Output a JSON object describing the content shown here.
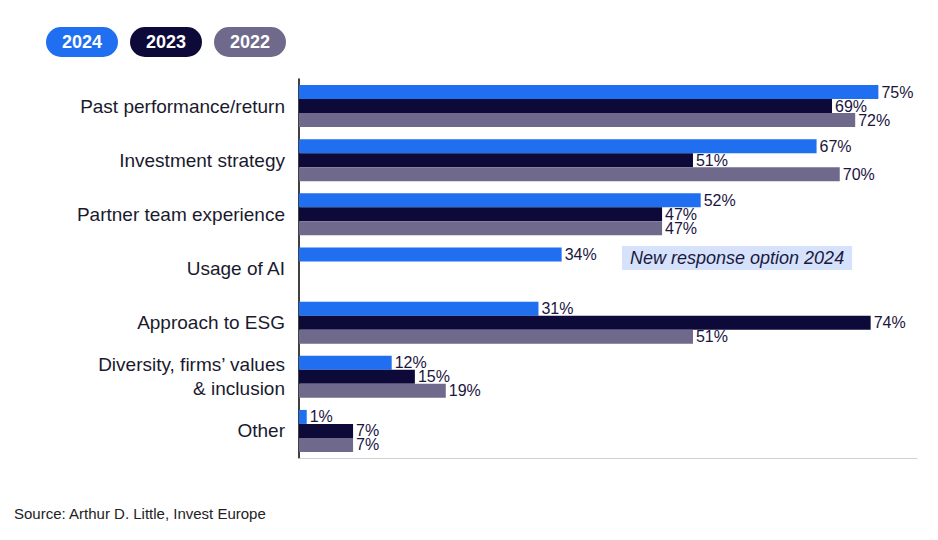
{
  "chart_data": {
    "type": "bar",
    "orientation": "horizontal",
    "categories": [
      "Past performance/return",
      "Investment strategy",
      "Partner team experience",
      "Usage of AI",
      "Approach to ESG",
      "Diversity, firms’ values\n& inclusion",
      "Other"
    ],
    "series": [
      {
        "name": "2024",
        "color": "#1f6ff0",
        "values": [
          75,
          67,
          52,
          34,
          31,
          12,
          1
        ],
        "value_labels": [
          "75%",
          "67%",
          "52%",
          "34%",
          "31%",
          "12%",
          "1%"
        ]
      },
      {
        "name": "2023",
        "color": "#0d0a3a",
        "values": [
          69,
          51,
          47,
          null,
          74,
          15,
          7
        ],
        "value_labels": [
          "69%",
          "51%",
          "47%",
          null,
          "74%",
          "15%",
          "7%"
        ]
      },
      {
        "name": "2022",
        "color": "#6f6a8c",
        "values": [
          72,
          70,
          47,
          null,
          51,
          19,
          7
        ],
        "value_labels": [
          "72%",
          "70%",
          "47%",
          null,
          "51%",
          "19%",
          "7%"
        ]
      }
    ],
    "xlim": [
      0,
      80
    ],
    "tick_labels": "y",
    "grid": false,
    "data_labels": true,
    "legend": "top-left",
    "annotations": [
      {
        "text": "New response option 2024",
        "category": "Usage of AI"
      }
    ],
    "source": "Source: Arthur D. Little, Invest Europe"
  }
}
